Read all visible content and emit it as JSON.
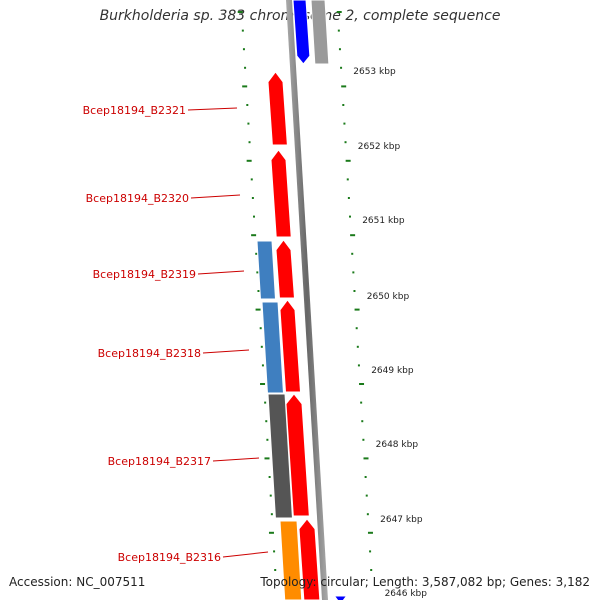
{
  "title": "Burkholderia sp. 383 chromosome 2, complete sequence",
  "footer": {
    "accession": "Accession: NC_007511",
    "summary": "Topology: circular; Length: 3,587,082 bp; Genes: 3,182"
  },
  "genes": [
    {
      "label": "Bcep18194_B2321",
      "color": "#ff0000"
    },
    {
      "label": "Bcep18194_B2320",
      "color": "#ff0000"
    },
    {
      "label": "Bcep18194_B2319",
      "color": "#ff0000"
    },
    {
      "label": "Bcep18194_B2318",
      "color": "#ff0000"
    },
    {
      "label": "Bcep18194_B2317",
      "color": "#ff0000"
    },
    {
      "label": "Bcep18194_B2316",
      "color": "#ff0000"
    }
  ],
  "other_features": [
    {
      "track": "forward",
      "color": "#0000ff"
    },
    {
      "track": "reverse",
      "color": "#9a9a9a"
    },
    {
      "track": "reverse",
      "color": "#3f7fc0"
    },
    {
      "track": "reverse",
      "color": "#3f7fc0"
    },
    {
      "track": "reverse",
      "color": "#555555"
    },
    {
      "track": "reverse",
      "color": "#ff8c00"
    },
    {
      "track": "forward",
      "color": "#0000ff"
    }
  ],
  "scale_labels": [
    "2653 kbp",
    "2652 kbp",
    "2651 kbp",
    "2650 kbp",
    "2649 kbp",
    "2648 kbp",
    "2647 kbp",
    "2646 kbp"
  ],
  "colors": {
    "backbone": "#888888",
    "tick": "#1a7a1a",
    "label": "#cc0000",
    "label_line": "#cc0000"
  }
}
